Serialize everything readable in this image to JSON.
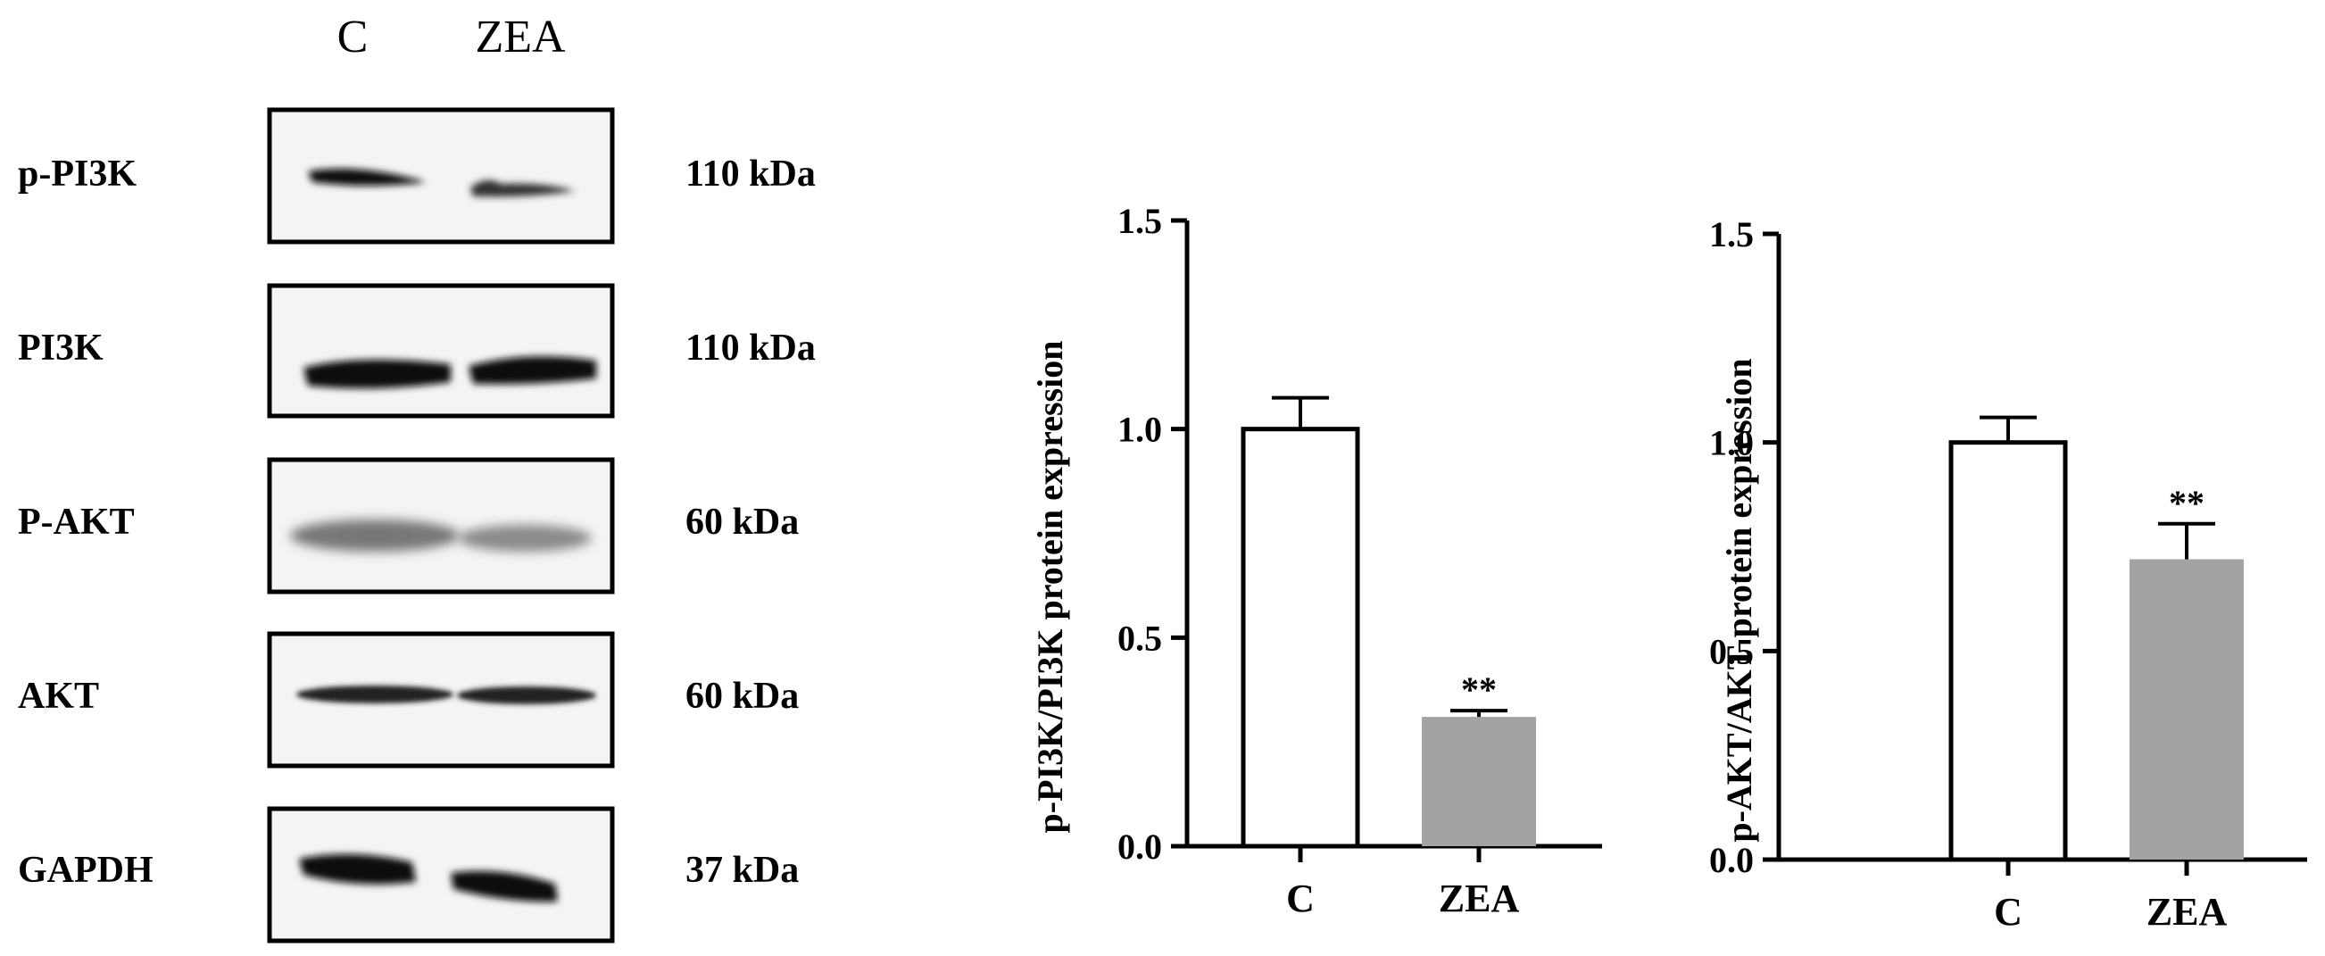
{
  "blot": {
    "lanes": [
      "C",
      "ZEA"
    ],
    "rows": [
      {
        "protein": "p-PI3K",
        "size": "110 kDa"
      },
      {
        "protein": "PI3K",
        "size": "110 kDa"
      },
      {
        "protein": "P-AKT",
        "size": "60 kDa"
      },
      {
        "protein": "AKT",
        "size": "60 kDa"
      },
      {
        "protein": "GAPDH",
        "size": "37 kDa"
      }
    ]
  },
  "chart_data": [
    {
      "type": "bar",
      "categories": [
        "C",
        "ZEA"
      ],
      "values": [
        1.0,
        0.31
      ],
      "errors": [
        0.075,
        0.015
      ],
      "significance": [
        "",
        "**"
      ],
      "ylabel": "p-PI3K/PI3K protein expression",
      "ylim": [
        0,
        1.5
      ],
      "yticks": [
        "0.0",
        "0.5",
        "1.0",
        "1.5"
      ],
      "bar_colors": [
        "#ffffff",
        "#a3a3a6"
      ],
      "grid": false
    },
    {
      "type": "bar",
      "categories": [
        "C",
        "ZEA"
      ],
      "values": [
        1.0,
        0.72
      ],
      "errors": [
        0.06,
        0.085
      ],
      "significance": [
        "",
        "**"
      ],
      "ylabel": "p-AKT/AKT protein expression",
      "ylim": [
        0,
        1.5
      ],
      "yticks": [
        "0.0",
        "0.5",
        "1.0",
        "1.5"
      ],
      "bar_colors": [
        "#ffffff",
        "#a3a3a6"
      ],
      "grid": false
    }
  ]
}
